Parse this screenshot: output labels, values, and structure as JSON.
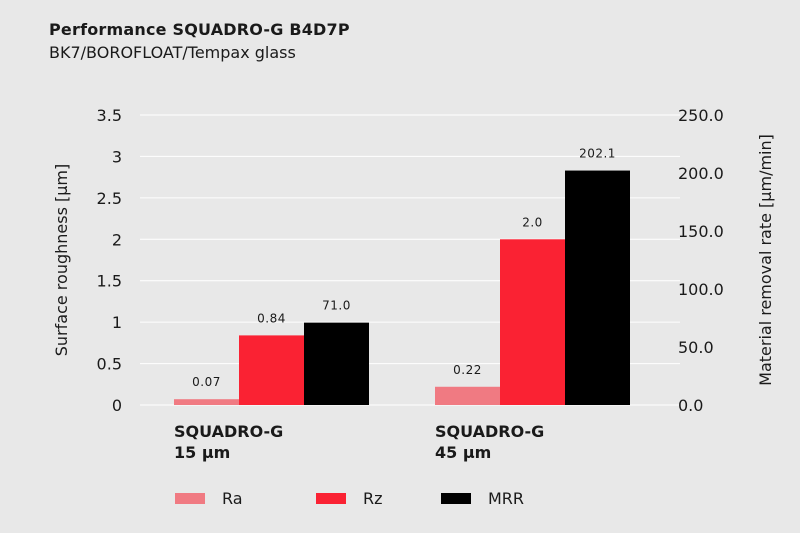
{
  "header": {
    "title": "Performance SQUADRO-G B4D7P",
    "subtitle": "BK7/BOROFLOAT/Tempax glass"
  },
  "chart_data": {
    "type": "bar",
    "categories": [
      [
        "SQUADRO-G",
        "15 µm"
      ],
      [
        "SQUADRO-G",
        "45 µm"
      ]
    ],
    "series": [
      {
        "name": "Ra",
        "axis": "left",
        "values": [
          0.07,
          0.22
        ],
        "labels": [
          "0.07",
          "0.22"
        ],
        "color": "#f07a82"
      },
      {
        "name": "Rz",
        "axis": "left",
        "values": [
          0.84,
          2.0
        ],
        "labels": [
          "0.84",
          "2.0"
        ],
        "color": "#fa2233"
      },
      {
        "name": "MRR",
        "axis": "right",
        "values": [
          71.0,
          202.1
        ],
        "labels": [
          "71.0",
          "202.1"
        ],
        "color": "#000000"
      }
    ],
    "ylabel": "Surface roughness [µm]",
    "ylabel_right": "Material removal rate [µm/min]",
    "ylim": [
      0,
      3.5
    ],
    "yticks": [
      "0",
      "0.5",
      "1",
      "1.5",
      "2",
      "2.5",
      "3",
      "3.5"
    ],
    "ylim_right": [
      0,
      250
    ],
    "yticks_right": [
      "0.0",
      "50.0",
      "100.0",
      "150.0",
      "200.0",
      "250.0"
    ],
    "grid": true,
    "legend_position": "bottom"
  }
}
